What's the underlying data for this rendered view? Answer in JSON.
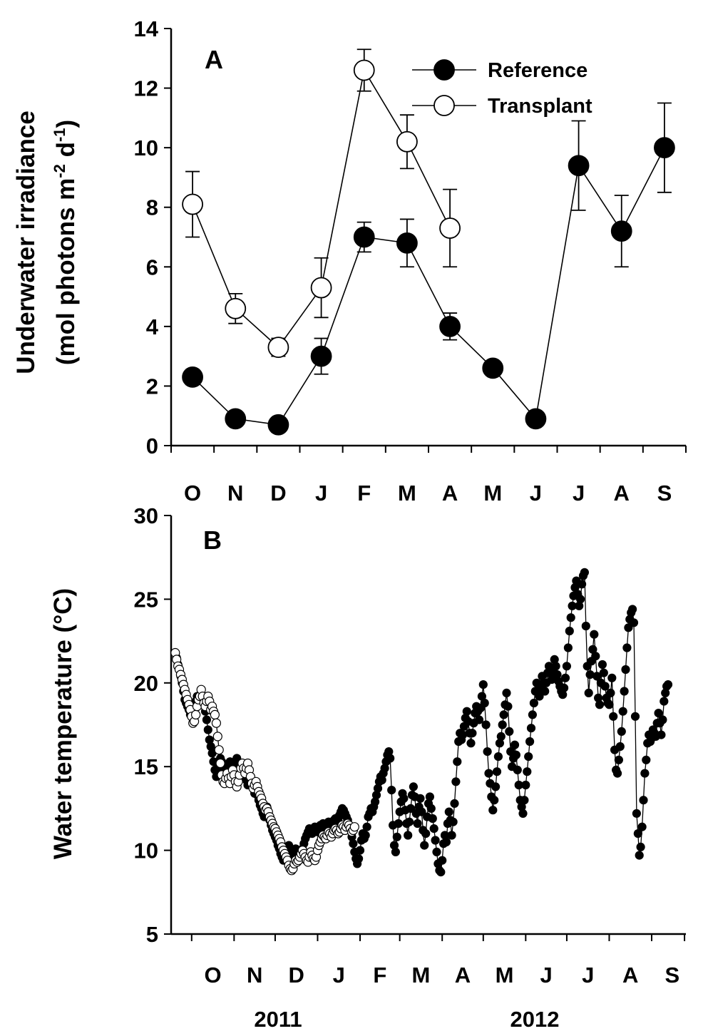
{
  "chart_data": [
    {
      "panel_label": "A",
      "type": "line",
      "ylabel_line1": "Underwater irradiance",
      "ylabel_line2": {
        "pre": "(mol photons m",
        "sup1": "-2",
        "mid": " d",
        "sup2": "-1",
        "post": ")"
      },
      "ylim": [
        0,
        14
      ],
      "yticks": [
        "0",
        "2",
        "4",
        "6",
        "8",
        "10",
        "12",
        "14"
      ],
      "categories": [
        "O",
        "N",
        "D",
        "J",
        "F",
        "M",
        "A",
        "M",
        "J",
        "J",
        "A",
        "S"
      ],
      "legend_position": "top-right",
      "series": [
        {
          "name": "Reference",
          "marker": "filled",
          "values": [
            2.3,
            0.9,
            0.7,
            3.0,
            7.0,
            6.8,
            4.0,
            2.6,
            0.9,
            9.4,
            7.2,
            10.0
          ],
          "errors": [
            0.25,
            0.15,
            0.15,
            0.6,
            0.5,
            0.8,
            0.45,
            0.2,
            0.1,
            1.5,
            1.2,
            1.5
          ]
        },
        {
          "name": "Transplant",
          "marker": "open",
          "values": [
            8.1,
            4.6,
            3.3,
            5.3,
            12.6,
            10.2,
            7.3,
            null,
            null,
            null,
            null,
            null
          ],
          "errors": [
            1.1,
            0.5,
            0.3,
            1.0,
            0.7,
            0.9,
            1.3,
            null,
            null,
            null,
            null,
            null
          ]
        }
      ]
    },
    {
      "panel_label": "B",
      "type": "line",
      "ylabel": "Water temperature (°C)",
      "ylim": [
        5,
        30
      ],
      "yticks": [
        "5",
        "10",
        "15",
        "20",
        "25",
        "30"
      ],
      "month_labels": [
        "O",
        "N",
        "D",
        "J",
        "F",
        "M",
        "A",
        "M",
        "J",
        "J",
        "A",
        "S"
      ],
      "year_labels": [
        "2011",
        "2012"
      ],
      "series": [
        {
          "name": "Transplant",
          "marker": "open",
          "x_start": "2011-09-19",
          "y": [
            21.8,
            21.4,
            21.0,
            20.8,
            20.5,
            20.2,
            19.9,
            19.6,
            19.3,
            19.0,
            18.7,
            18.4,
            18.0,
            17.6,
            17.7,
            18.1,
            18.6,
            19.0,
            19.2,
            19.6,
            19.2,
            18.8,
            18.6,
            18.9,
            19.2,
            18.9,
            18.4,
            18.6,
            18.3,
            18.1,
            17.6,
            16.8,
            16.0,
            15.2,
            14.5,
            14.1,
            14.0,
            14.3,
            14.6,
            14.3,
            14.0,
            14.4,
            14.8,
            14.5,
            14.1,
            13.8,
            14.1,
            14.5,
            14.9,
            15.2,
            14.9,
            14.6,
            14.9,
            15.2,
            14.8,
            14.4,
            14.0,
            13.7,
            13.9,
            14.1,
            13.8,
            13.5,
            13.3,
            13.1,
            12.8,
            12.6,
            12.4,
            12.5,
            12.3,
            12.0,
            11.8,
            11.6,
            11.4,
            11.3,
            11.1,
            10.9,
            10.7,
            10.5,
            10.2,
            10.0,
            9.8,
            9.6,
            9.4,
            9.1,
            8.9,
            8.8,
            8.9,
            9.2,
            9.4,
            9.3,
            9.4,
            9.6,
            9.8,
            10.0,
            9.8,
            9.6,
            9.4,
            9.3,
            9.6,
            9.9,
            9.7,
            9.5,
            9.4,
            9.6,
            10.0,
            10.3,
            10.5,
            10.7,
            10.9,
            10.8,
            10.7,
            10.9,
            11.1,
            11.0,
            10.8,
            11.0,
            11.2,
            11.3,
            11.2,
            11.0,
            11.1,
            11.3,
            11.5,
            11.4,
            11.2,
            11.4,
            11.6,
            11.5,
            11.3,
            11.1,
            11.2,
            11.4
          ]
        },
        {
          "name": "Reference",
          "marker": "filled",
          "x_start": "2011-09-19",
          "y": [
            21.8,
            21.5,
            21.1,
            20.8,
            20.4,
            20.0,
            19.5,
            19.0,
            18.8,
            18.6,
            18.4,
            18.1,
            18.0,
            18.2,
            18.6,
            18.9,
            19.2,
            19.0,
            18.7,
            18.9,
            19.1,
            18.8,
            18.3,
            17.8,
            17.2,
            16.6,
            16.2,
            15.8,
            15.3,
            14.8,
            14.4,
            14.7,
            15.1,
            15.5,
            15.3,
            15.0,
            14.6,
            14.3,
            14.7,
            15.1,
            15.3,
            14.9,
            14.5,
            14.8,
            15.2,
            15.5,
            15.1,
            14.7,
            14.3,
            14.6,
            14.9,
            14.6,
            14.2,
            13.9,
            14.1,
            14.3,
            14.0,
            13.7,
            13.4,
            13.6,
            13.3,
            13.0,
            12.7,
            12.5,
            12.2,
            12.0,
            12.3,
            12.6,
            12.2,
            11.8,
            11.5,
            11.2,
            11.0,
            10.8,
            10.6,
            10.3,
            10.1,
            9.8,
            9.6,
            9.4,
            9.6,
            9.8,
            10.1,
            10.3,
            10.1,
            9.8,
            9.6,
            9.8,
            10.1,
            9.9,
            9.7,
            9.5,
            9.8,
            10.1,
            10.4,
            10.7,
            10.9,
            11.1,
            11.3,
            11.2,
            11.0,
            11.2,
            11.4,
            11.3,
            11.1,
            11.3,
            11.5,
            11.4,
            11.6,
            11.5,
            11.3,
            11.5,
            11.7,
            11.6,
            11.4,
            11.6,
            11.8,
            11.9,
            11.7,
            11.9,
            12.1,
            12.3,
            12.5,
            12.4,
            12.2,
            12.0,
            11.8,
            11.5,
            11.2,
            10.8,
            10.4,
            9.9,
            9.5,
            9.2,
            9.5,
            10.0,
            10.6,
            11.0,
            10.7,
            10.9,
            11.4,
            12.0,
            12.2,
            12.5,
            12.3,
            12.6,
            12.9,
            13.3,
            13.7,
            14.1,
            14.4,
            14.2,
            14.6,
            14.9,
            15.3,
            15.7,
            15.9,
            15.5,
            13.6,
            11.5,
            10.3,
            9.9,
            10.8,
            11.6,
            12.3,
            12.9,
            13.4,
            13.1,
            12.4,
            11.6,
            10.9,
            11.7,
            12.5,
            13.3,
            13.8,
            13.2,
            12.2,
            11.6,
            12.6,
            13.1,
            12.3,
            11.2,
            10.3,
            11.0,
            12.0,
            12.8,
            13.2,
            12.5,
            11.9,
            11.3,
            10.6,
            9.9,
            9.2,
            8.8,
            8.7,
            9.4,
            10.4,
            10.9,
            10.5,
            11.6,
            12.3,
            11.8,
            10.9,
            11.7,
            12.8,
            14.1,
            15.3,
            16.5,
            17.0,
            16.6,
            16.9,
            17.4,
            17.9,
            18.3,
            17.7,
            17.0,
            16.4,
            17.0,
            17.6,
            18.2,
            18.6,
            18.3,
            17.8,
            18.5,
            19.2,
            19.9,
            18.8,
            17.5,
            15.9,
            14.6,
            14.0,
            13.2,
            12.4,
            13.0,
            13.8,
            14.7,
            15.6,
            16.4,
            16.8,
            17.5,
            18.1,
            18.7,
            19.4,
            18.6,
            17.1,
            15.9,
            15.0,
            15.5,
            16.3,
            15.7,
            14.8,
            13.9,
            13.0,
            12.6,
            12.2,
            13.0,
            13.9,
            14.7,
            15.6,
            16.5,
            17.3,
            18.1,
            18.8,
            19.5,
            20.0,
            19.6,
            19.2,
            19.8,
            20.4,
            20.0,
            19.5,
            20.0,
            20.6,
            21.0,
            20.6,
            20.2,
            20.8,
            21.4,
            21.0,
            20.5,
            20.1,
            19.8,
            19.5,
            19.3,
            19.7,
            20.3,
            21.0,
            22.1,
            23.1,
            23.9,
            24.6,
            25.2,
            25.7,
            26.1,
            25.3,
            24.6,
            25.0,
            25.9,
            26.4,
            26.6,
            23.4,
            21.0,
            19.4,
            20.5,
            21.3,
            22.0,
            22.9,
            21.6,
            20.4,
            19.1,
            18.7,
            20.0,
            21.1,
            20.6,
            19.8,
            19.1,
            18.8,
            18.7,
            19.4,
            20.3,
            18.0,
            16.0,
            14.8,
            14.6,
            15.4,
            16.2,
            17.1,
            18.3,
            19.5,
            20.8,
            22.1,
            23.3,
            23.8,
            24.2,
            24.4,
            23.6,
            18.0,
            12.2,
            11.0,
            9.7,
            10.2,
            11.4,
            13.0,
            14.6,
            15.4,
            16.4,
            16.9,
            16.5,
            16.7,
            17.2,
            17.0,
            16.8,
            17.6,
            18.2,
            17.6,
            16.9,
            17.8,
            18.9,
            19.4,
            19.8,
            19.9
          ]
        }
      ]
    }
  ]
}
